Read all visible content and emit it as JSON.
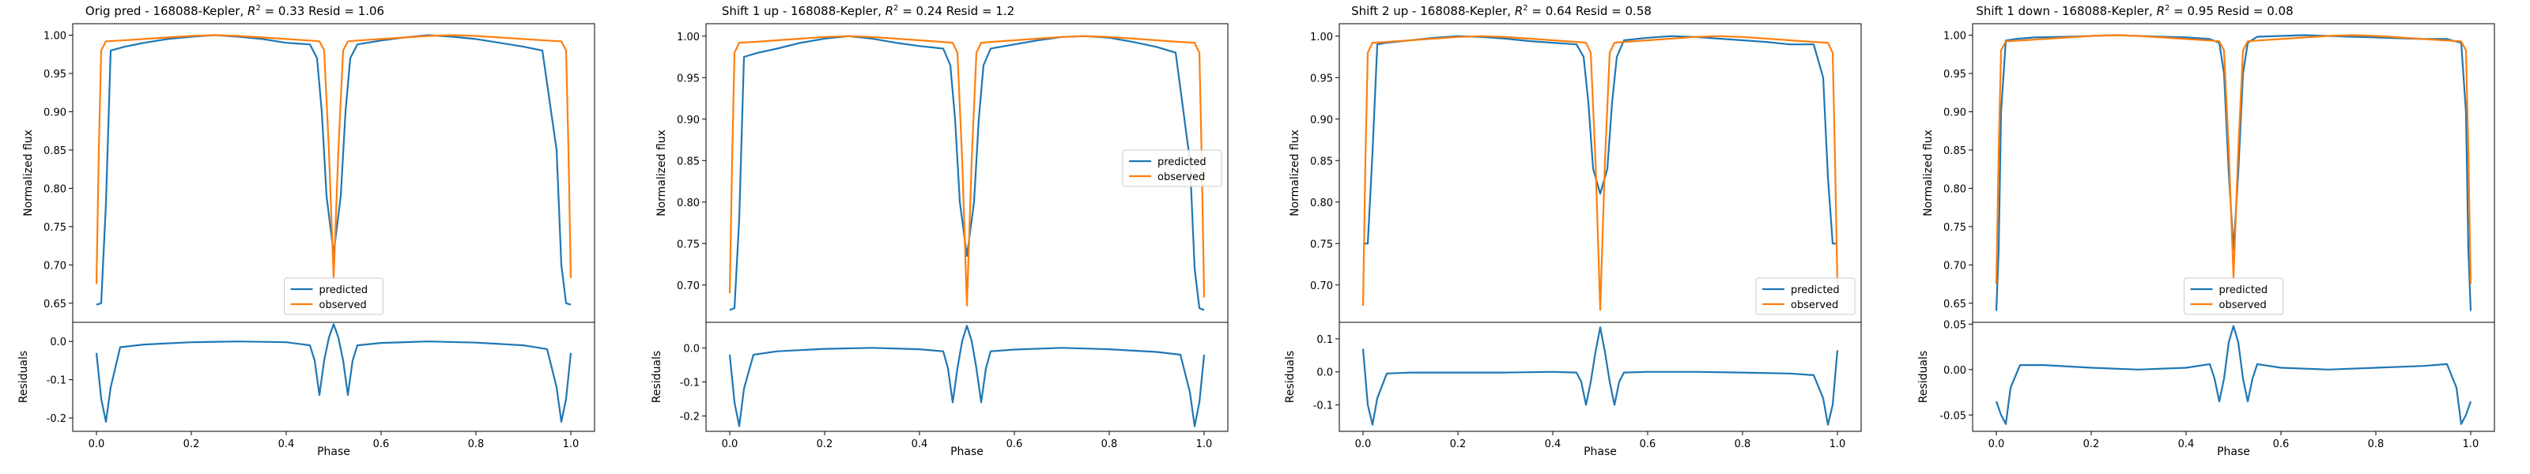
{
  "figure": {
    "panels": [
      {
        "title_prefix": "Orig pred - 168088-Kepler, ",
        "r2_label": "R",
        "title_suffix": " = 0.33 Resid = 1.06"
      },
      {
        "title_prefix": "Shift 1 up - 168088-Kepler, ",
        "r2_label": "R",
        "title_suffix": " = 0.24 Resid = 1.2"
      },
      {
        "title_prefix": "Shift 2 up - 168088-Kepler, ",
        "r2_label": "R",
        "title_suffix": " = 0.64 Resid = 0.58"
      },
      {
        "title_prefix": "Shift 1 down - 168088-Kepler, ",
        "r2_label": "R",
        "title_suffix": " = 0.95 Resid = 0.08"
      }
    ]
  },
  "colors": {
    "predicted": "#1f77b4",
    "observed": "#ff7f0e"
  },
  "chart_data": [
    {
      "type": "line",
      "title": "Orig pred - 168088-Kepler, R^2 = 0.33 Resid = 1.06",
      "xlabel": "Phase",
      "ylabel_top": "Normalized flux",
      "ylabel_bottom": "Residuals",
      "xlim": [
        -0.05,
        1.05
      ],
      "ylim_top": [
        0.625,
        1.015
      ],
      "ylim_bottom": [
        -0.235,
        0.05
      ],
      "xticks": [
        "0.0",
        "0.2",
        "0.4",
        "0.6",
        "0.8",
        "1.0"
      ],
      "yticks_top": [
        "0.65",
        "0.70",
        "0.75",
        "0.80",
        "0.85",
        "0.90",
        "0.95",
        "1.00"
      ],
      "yticks_bottom": [
        "0.0",
        "-0.1",
        "-0.2"
      ],
      "legend": {
        "placement": "lower center",
        "entries": [
          "predicted",
          "observed"
        ]
      },
      "series": [
        {
          "name": "predicted",
          "x": [
            0,
            0.01,
            0.02,
            0.03,
            0.06,
            0.1,
            0.15,
            0.2,
            0.25,
            0.3,
            0.35,
            0.4,
            0.45,
            0.465,
            0.475,
            0.485,
            0.5,
            0.515,
            0.525,
            0.535,
            0.55,
            0.6,
            0.65,
            0.7,
            0.75,
            0.8,
            0.85,
            0.9,
            0.94,
            0.97,
            0.98,
            0.99,
            1.0
          ],
          "values": [
            0.648,
            0.65,
            0.78,
            0.98,
            0.985,
            0.99,
            0.995,
            0.998,
            1.0,
            0.998,
            0.995,
            0.99,
            0.988,
            0.97,
            0.9,
            0.79,
            0.715,
            0.79,
            0.9,
            0.97,
            0.988,
            0.993,
            0.997,
            1.0,
            0.998,
            0.995,
            0.99,
            0.985,
            0.98,
            0.85,
            0.7,
            0.65,
            0.648
          ]
        },
        {
          "name": "observed",
          "x": [
            0,
            0.005,
            0.01,
            0.02,
            0.05,
            0.1,
            0.15,
            0.2,
            0.25,
            0.3,
            0.35,
            0.4,
            0.45,
            0.47,
            0.48,
            0.49,
            0.5,
            0.51,
            0.52,
            0.53,
            0.55,
            0.6,
            0.65,
            0.7,
            0.75,
            0.8,
            0.85,
            0.9,
            0.95,
            0.98,
            0.99,
            0.995,
            1.0
          ],
          "values": [
            0.675,
            0.85,
            0.98,
            0.992,
            0.993,
            0.995,
            0.997,
            0.999,
            1.0,
            0.999,
            0.997,
            0.995,
            0.993,
            0.992,
            0.98,
            0.85,
            0.683,
            0.85,
            0.98,
            0.992,
            0.993,
            0.995,
            0.997,
            0.999,
            1.0,
            0.999,
            0.997,
            0.995,
            0.993,
            0.992,
            0.98,
            0.85,
            0.683
          ]
        },
        {
          "name": "residuals",
          "x": [
            0,
            0.01,
            0.02,
            0.03,
            0.05,
            0.1,
            0.2,
            0.3,
            0.4,
            0.45,
            0.46,
            0.47,
            0.48,
            0.49,
            0.5,
            0.51,
            0.52,
            0.53,
            0.54,
            0.55,
            0.6,
            0.7,
            0.8,
            0.9,
            0.95,
            0.97,
            0.98,
            0.99,
            1.0
          ],
          "values": [
            -0.03,
            -0.15,
            -0.21,
            -0.12,
            -0.015,
            -0.008,
            -0.002,
            0.0,
            -0.002,
            -0.01,
            -0.05,
            -0.14,
            -0.05,
            0.01,
            0.045,
            0.01,
            -0.05,
            -0.14,
            -0.05,
            -0.01,
            -0.004,
            0.0,
            -0.003,
            -0.01,
            -0.02,
            -0.12,
            -0.21,
            -0.15,
            -0.03
          ]
        }
      ]
    },
    {
      "type": "line",
      "title": "Shift 1 up - 168088-Kepler, R^2 = 0.24 Resid = 1.2",
      "xlabel": "Phase",
      "ylabel_top": "Normalized flux",
      "ylabel_bottom": "Residuals",
      "xlim": [
        -0.05,
        1.05
      ],
      "ylim_top": [
        0.655,
        1.015
      ],
      "ylim_bottom": [
        -0.245,
        0.075
      ],
      "xticks": [
        "0.0",
        "0.2",
        "0.4",
        "0.6",
        "0.8",
        "1.0"
      ],
      "yticks_top": [
        "0.70",
        "0.75",
        "0.80",
        "0.85",
        "0.90",
        "0.95",
        "1.00"
      ],
      "yticks_bottom": [
        "0.0",
        "-0.1",
        "-0.2"
      ],
      "legend": {
        "placement": "center right",
        "entries": [
          "predicted",
          "observed"
        ]
      },
      "series": [
        {
          "name": "predicted",
          "x": [
            0,
            0.01,
            0.02,
            0.03,
            0.06,
            0.1,
            0.15,
            0.2,
            0.25,
            0.3,
            0.35,
            0.4,
            0.45,
            0.465,
            0.475,
            0.485,
            0.5,
            0.515,
            0.525,
            0.535,
            0.55,
            0.6,
            0.65,
            0.7,
            0.75,
            0.8,
            0.85,
            0.9,
            0.94,
            0.97,
            0.98,
            0.99,
            1.0
          ],
          "values": [
            0.67,
            0.672,
            0.78,
            0.975,
            0.98,
            0.985,
            0.992,
            0.997,
            1.0,
            0.997,
            0.992,
            0.988,
            0.985,
            0.965,
            0.9,
            0.8,
            0.735,
            0.8,
            0.9,
            0.965,
            0.985,
            0.99,
            0.995,
            0.999,
            1.0,
            0.998,
            0.993,
            0.987,
            0.98,
            0.85,
            0.72,
            0.672,
            0.67
          ]
        },
        {
          "name": "observed",
          "x": [
            0,
            0.005,
            0.01,
            0.02,
            0.05,
            0.1,
            0.15,
            0.2,
            0.25,
            0.3,
            0.35,
            0.4,
            0.45,
            0.47,
            0.48,
            0.49,
            0.5,
            0.51,
            0.52,
            0.53,
            0.55,
            0.6,
            0.65,
            0.7,
            0.75,
            0.8,
            0.85,
            0.9,
            0.95,
            0.98,
            0.99,
            0.995,
            1.0
          ],
          "values": [
            0.69,
            0.85,
            0.98,
            0.992,
            0.993,
            0.995,
            0.997,
            0.999,
            1.0,
            0.999,
            0.997,
            0.995,
            0.993,
            0.992,
            0.98,
            0.85,
            0.675,
            0.85,
            0.98,
            0.992,
            0.993,
            0.995,
            0.997,
            0.999,
            1.0,
            0.999,
            0.997,
            0.995,
            0.993,
            0.992,
            0.98,
            0.85,
            0.685
          ]
        },
        {
          "name": "residuals",
          "x": [
            0,
            0.01,
            0.02,
            0.03,
            0.05,
            0.1,
            0.2,
            0.3,
            0.4,
            0.45,
            0.46,
            0.47,
            0.48,
            0.49,
            0.5,
            0.51,
            0.52,
            0.53,
            0.54,
            0.55,
            0.6,
            0.7,
            0.8,
            0.9,
            0.95,
            0.97,
            0.98,
            0.99,
            1.0
          ],
          "values": [
            -0.02,
            -0.16,
            -0.23,
            -0.12,
            -0.02,
            -0.01,
            -0.003,
            0.0,
            -0.004,
            -0.01,
            -0.06,
            -0.16,
            -0.06,
            0.02,
            0.065,
            0.02,
            -0.06,
            -0.16,
            -0.06,
            -0.01,
            -0.005,
            0.0,
            -0.004,
            -0.012,
            -0.02,
            -0.13,
            -0.23,
            -0.16,
            -0.02
          ]
        }
      ]
    },
    {
      "type": "line",
      "title": "Shift 2 up - 168088-Kepler, R^2 = 0.64 Resid = 0.58",
      "xlabel": "Phase",
      "ylabel_top": "Normalized flux",
      "ylabel_bottom": "Residuals",
      "xlim": [
        -0.05,
        1.05
      ],
      "ylim_top": [
        0.655,
        1.015
      ],
      "ylim_bottom": [
        -0.18,
        0.15
      ],
      "xticks": [
        "0.0",
        "0.2",
        "0.4",
        "0.6",
        "0.8",
        "1.0"
      ],
      "yticks_top": [
        "0.70",
        "0.75",
        "0.80",
        "0.85",
        "0.90",
        "0.95",
        "1.00"
      ],
      "yticks_bottom": [
        "0.1",
        "0.0",
        "-0.1"
      ],
      "legend": {
        "placement": "lower right",
        "entries": [
          "predicted",
          "observed"
        ]
      },
      "series": [
        {
          "name": "predicted",
          "x": [
            0,
            0.01,
            0.02,
            0.03,
            0.05,
            0.1,
            0.15,
            0.2,
            0.25,
            0.3,
            0.35,
            0.4,
            0.45,
            0.465,
            0.475,
            0.485,
            0.5,
            0.515,
            0.525,
            0.535,
            0.55,
            0.6,
            0.65,
            0.7,
            0.75,
            0.8,
            0.85,
            0.9,
            0.95,
            0.97,
            0.98,
            0.99,
            1.0
          ],
          "values": [
            0.75,
            0.75,
            0.86,
            0.99,
            0.992,
            0.995,
            0.998,
            1.0,
            0.999,
            0.997,
            0.994,
            0.992,
            0.99,
            0.975,
            0.92,
            0.84,
            0.81,
            0.84,
            0.92,
            0.975,
            0.995,
            0.998,
            1.0,
            0.999,
            0.997,
            0.995,
            0.993,
            0.99,
            0.99,
            0.95,
            0.83,
            0.75,
            0.75
          ]
        },
        {
          "name": "observed",
          "x": [
            0,
            0.005,
            0.01,
            0.02,
            0.05,
            0.1,
            0.15,
            0.2,
            0.25,
            0.3,
            0.35,
            0.4,
            0.45,
            0.47,
            0.48,
            0.49,
            0.5,
            0.51,
            0.52,
            0.53,
            0.55,
            0.6,
            0.65,
            0.7,
            0.75,
            0.8,
            0.85,
            0.9,
            0.95,
            0.98,
            0.99,
            0.995,
            1.0
          ],
          "values": [
            0.675,
            0.85,
            0.98,
            0.992,
            0.993,
            0.995,
            0.997,
            0.999,
            1.0,
            0.999,
            0.997,
            0.995,
            0.993,
            0.992,
            0.98,
            0.85,
            0.67,
            0.85,
            0.98,
            0.992,
            0.993,
            0.995,
            0.997,
            0.999,
            1.0,
            0.999,
            0.997,
            0.995,
            0.993,
            0.992,
            0.98,
            0.85,
            0.7
          ]
        },
        {
          "name": "residuals",
          "x": [
            0,
            0.01,
            0.02,
            0.03,
            0.05,
            0.1,
            0.2,
            0.3,
            0.4,
            0.45,
            0.46,
            0.47,
            0.48,
            0.49,
            0.5,
            0.51,
            0.52,
            0.53,
            0.54,
            0.55,
            0.6,
            0.7,
            0.8,
            0.9,
            0.95,
            0.97,
            0.98,
            0.99,
            1.0
          ],
          "values": [
            0.07,
            -0.1,
            -0.16,
            -0.08,
            -0.005,
            -0.002,
            -0.002,
            -0.002,
            0.0,
            -0.002,
            -0.03,
            -0.1,
            -0.03,
            0.06,
            0.135,
            0.06,
            -0.03,
            -0.1,
            -0.03,
            -0.002,
            0.0,
            0.0,
            -0.002,
            -0.005,
            -0.01,
            -0.08,
            -0.16,
            -0.1,
            0.065
          ]
        }
      ]
    },
    {
      "type": "line",
      "title": "Shift 1 down - 168088-Kepler, R^2 = 0.95 Resid = 0.08",
      "xlabel": "Phase",
      "ylabel_top": "Normalized flux",
      "ylabel_bottom": "Residuals",
      "xlim": [
        -0.05,
        1.05
      ],
      "ylim_top": [
        0.625,
        1.015
      ],
      "ylim_bottom": [
        -0.068,
        0.052
      ],
      "xticks": [
        "0.0",
        "0.2",
        "0.4",
        "0.6",
        "0.8",
        "1.0"
      ],
      "yticks_top": [
        "0.65",
        "0.70",
        "0.75",
        "0.80",
        "0.85",
        "0.90",
        "0.95",
        "1.00"
      ],
      "yticks_bottom": [
        "0.05",
        "0.00",
        "-0.05"
      ],
      "legend": {
        "placement": "lower center",
        "entries": [
          "predicted",
          "observed"
        ]
      },
      "series": [
        {
          "name": "predicted",
          "x": [
            0,
            0.005,
            0.01,
            0.02,
            0.04,
            0.08,
            0.15,
            0.2,
            0.25,
            0.3,
            0.35,
            0.4,
            0.45,
            0.47,
            0.48,
            0.49,
            0.5,
            0.51,
            0.52,
            0.53,
            0.55,
            0.6,
            0.65,
            0.7,
            0.75,
            0.8,
            0.85,
            0.9,
            0.95,
            0.98,
            0.99,
            0.995,
            1.0
          ],
          "values": [
            0.64,
            0.72,
            0.9,
            0.993,
            0.995,
            0.997,
            0.998,
            0.999,
            1.0,
            0.999,
            0.998,
            0.997,
            0.995,
            0.99,
            0.95,
            0.82,
            0.72,
            0.82,
            0.95,
            0.99,
            0.998,
            0.999,
            1.0,
            0.999,
            0.998,
            0.997,
            0.996,
            0.995,
            0.995,
            0.99,
            0.9,
            0.72,
            0.64
          ]
        },
        {
          "name": "observed",
          "x": [
            0,
            0.005,
            0.01,
            0.02,
            0.05,
            0.1,
            0.15,
            0.2,
            0.25,
            0.3,
            0.35,
            0.4,
            0.45,
            0.47,
            0.48,
            0.49,
            0.5,
            0.51,
            0.52,
            0.53,
            0.55,
            0.6,
            0.65,
            0.7,
            0.75,
            0.8,
            0.85,
            0.9,
            0.95,
            0.98,
            0.99,
            0.995,
            1.0
          ],
          "values": [
            0.675,
            0.85,
            0.98,
            0.992,
            0.993,
            0.995,
            0.997,
            0.999,
            1.0,
            0.999,
            0.997,
            0.995,
            0.993,
            0.992,
            0.98,
            0.85,
            0.683,
            0.85,
            0.98,
            0.992,
            0.993,
            0.995,
            0.997,
            0.999,
            1.0,
            0.999,
            0.997,
            0.995,
            0.993,
            0.992,
            0.98,
            0.85,
            0.675
          ]
        },
        {
          "name": "residuals",
          "x": [
            0,
            0.01,
            0.02,
            0.03,
            0.05,
            0.1,
            0.2,
            0.3,
            0.4,
            0.45,
            0.46,
            0.47,
            0.48,
            0.49,
            0.5,
            0.51,
            0.52,
            0.53,
            0.54,
            0.55,
            0.6,
            0.7,
            0.8,
            0.9,
            0.95,
            0.97,
            0.98,
            0.99,
            1.0
          ],
          "values": [
            -0.035,
            -0.05,
            -0.06,
            -0.02,
            0.005,
            0.005,
            0.002,
            0.0,
            0.002,
            0.006,
            -0.01,
            -0.035,
            -0.01,
            0.03,
            0.048,
            0.03,
            -0.01,
            -0.035,
            -0.01,
            0.006,
            0.002,
            0.0,
            0.002,
            0.004,
            0.006,
            -0.02,
            -0.06,
            -0.05,
            -0.035
          ]
        }
      ]
    }
  ]
}
